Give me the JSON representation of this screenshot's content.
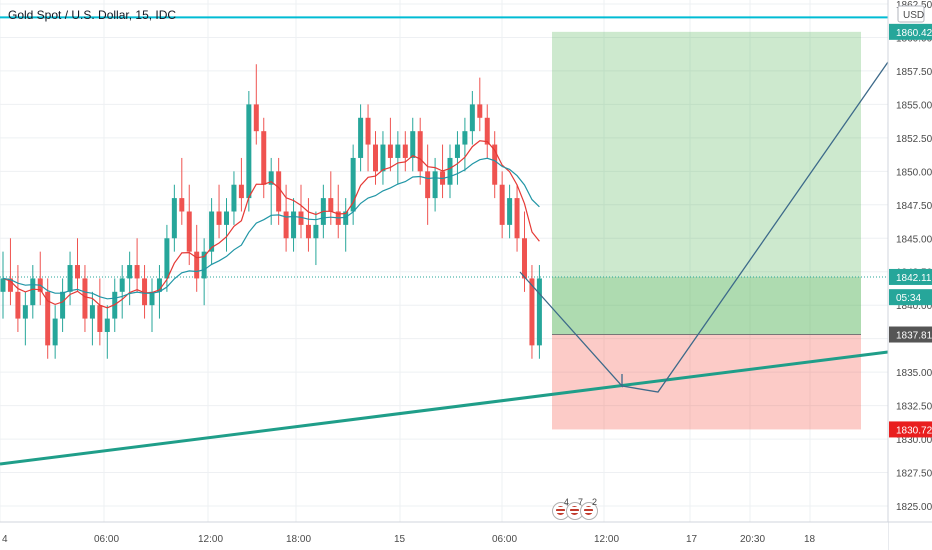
{
  "header": {
    "title": "Gold Spot / U.S. Dollar, 15, IDC"
  },
  "price_axis": {
    "currency": "USD",
    "labels": [
      "1862.50",
      "1860.00",
      "1857.50",
      "1855.00",
      "1852.50",
      "1850.00",
      "1847.50",
      "1845.00",
      "1842.50",
      "1840.00",
      "1837.50",
      "1835.00",
      "1832.50",
      "1830.00",
      "1827.50",
      "1825.00"
    ],
    "values": [
      1862.5,
      1860,
      1857.5,
      1855,
      1852.5,
      1850,
      1847.5,
      1845,
      1842.5,
      1840,
      1837.5,
      1835,
      1832.5,
      1830,
      1827.5,
      1825
    ]
  },
  "badges": [
    {
      "text": "1860.42",
      "value": 1860.42,
      "color": "#26a69a"
    },
    {
      "text": "1842.11",
      "value": 1842.11,
      "color": "#26a69a"
    },
    {
      "text": "05:34",
      "value": 1840.6,
      "color": "#26a69a"
    },
    {
      "text": "1837.81",
      "value": 1837.81,
      "color": "#555555"
    },
    {
      "text": "1830.72",
      "value": 1830.72,
      "color": "#e91e1e"
    }
  ],
  "time_axis": {
    "labels": [
      "4",
      "06:00",
      "12:00",
      "18:00",
      "15",
      "06:00",
      "12:00",
      "17",
      "20:30",
      "18"
    ]
  },
  "levels": {
    "cyan_line": 1861.5,
    "target": 1860.42,
    "entry": 1837.81,
    "stop": 1830.72,
    "last": 1842.11
  },
  "events": [
    {
      "count": "4"
    },
    {
      "count": "7"
    },
    {
      "count": "2"
    }
  ],
  "colors": {
    "up": "#26a69a",
    "down": "#ef5350",
    "ema_fast": "#e53935",
    "ema_slow": "#2196a6",
    "trendline": "#1f9e89",
    "projection": "#3d6a8a",
    "target_zone": "rgba(76,175,80,0.25)",
    "stop_zone": "rgba(244,67,54,0.25)"
  },
  "chart_data": {
    "type": "candlestick",
    "symbol": "Gold Spot / U.S. Dollar",
    "interval": "15",
    "ylim": [
      1823.5,
      1863
    ],
    "candles": [
      [
        1841,
        1844,
        1839,
        1842
      ],
      [
        1842,
        1845,
        1840,
        1841
      ],
      [
        1841,
        1843,
        1838,
        1839
      ],
      [
        1839,
        1841,
        1837,
        1840
      ],
      [
        1840,
        1843,
        1839,
        1842
      ],
      [
        1842,
        1844,
        1840,
        1841
      ],
      [
        1841,
        1842,
        1836,
        1837
      ],
      [
        1837,
        1840,
        1836,
        1839
      ],
      [
        1839,
        1842,
        1838,
        1841
      ],
      [
        1841,
        1844,
        1840,
        1843
      ],
      [
        1843,
        1845,
        1841,
        1842
      ],
      [
        1842,
        1843,
        1838,
        1839
      ],
      [
        1839,
        1841,
        1837,
        1840
      ],
      [
        1840,
        1842,
        1837,
        1838
      ],
      [
        1838,
        1840,
        1836,
        1839
      ],
      [
        1839,
        1842,
        1838,
        1841
      ],
      [
        1841,
        1843,
        1839,
        1842
      ],
      [
        1842,
        1844,
        1840,
        1843
      ],
      [
        1843,
        1845,
        1841,
        1842
      ],
      [
        1842,
        1843,
        1839,
        1840
      ],
      [
        1840,
        1842,
        1838,
        1841
      ],
      [
        1841,
        1843,
        1839,
        1842
      ],
      [
        1842,
        1846,
        1841,
        1845
      ],
      [
        1845,
        1849,
        1844,
        1848
      ],
      [
        1848,
        1851,
        1846,
        1847
      ],
      [
        1847,
        1849,
        1843,
        1844
      ],
      [
        1844,
        1846,
        1841,
        1842
      ],
      [
        1842,
        1845,
        1840,
        1844
      ],
      [
        1844,
        1848,
        1843,
        1847
      ],
      [
        1847,
        1849,
        1845,
        1846
      ],
      [
        1846,
        1848,
        1844,
        1847
      ],
      [
        1847,
        1850,
        1846,
        1849
      ],
      [
        1849,
        1851,
        1847,
        1848
      ],
      [
        1848,
        1856,
        1847,
        1855
      ],
      [
        1855,
        1858,
        1852,
        1853
      ],
      [
        1853,
        1854,
        1848,
        1849
      ],
      [
        1849,
        1851,
        1846,
        1850
      ],
      [
        1850,
        1851,
        1846,
        1847
      ],
      [
        1847,
        1849,
        1844,
        1845
      ],
      [
        1845,
        1848,
        1844,
        1847
      ],
      [
        1847,
        1849,
        1845,
        1846
      ],
      [
        1846,
        1848,
        1844,
        1845
      ],
      [
        1845,
        1847,
        1843,
        1846
      ],
      [
        1846,
        1849,
        1845,
        1848
      ],
      [
        1848,
        1850,
        1846,
        1847
      ],
      [
        1847,
        1849,
        1845,
        1846
      ],
      [
        1846,
        1848,
        1844,
        1847
      ],
      [
        1847,
        1852,
        1846,
        1851
      ],
      [
        1851,
        1855,
        1850,
        1854
      ],
      [
        1854,
        1855,
        1850,
        1852
      ],
      [
        1852,
        1853,
        1849,
        1850
      ],
      [
        1850,
        1853,
        1849,
        1852
      ],
      [
        1852,
        1854,
        1850,
        1851
      ],
      [
        1851,
        1853,
        1849,
        1852
      ],
      [
        1852,
        1853,
        1850,
        1851
      ],
      [
        1851,
        1854,
        1850,
        1853
      ],
      [
        1853,
        1854,
        1849,
        1850
      ],
      [
        1850,
        1852,
        1846,
        1848
      ],
      [
        1848,
        1851,
        1847,
        1850
      ],
      [
        1850,
        1852,
        1848,
        1849
      ],
      [
        1849,
        1852,
        1848,
        1851
      ],
      [
        1851,
        1853,
        1849,
        1852
      ],
      [
        1852,
        1854,
        1850,
        1853
      ],
      [
        1853,
        1856,
        1852,
        1855
      ],
      [
        1855,
        1857,
        1853,
        1854
      ],
      [
        1854,
        1855,
        1851,
        1852
      ],
      [
        1852,
        1853,
        1848,
        1849
      ],
      [
        1849,
        1850,
        1845,
        1846
      ],
      [
        1846,
        1849,
        1845,
        1848
      ],
      [
        1848,
        1849,
        1844,
        1845
      ],
      [
        1845,
        1847,
        1841,
        1842
      ],
      [
        1842,
        1843,
        1836,
        1837
      ],
      [
        1837,
        1843,
        1836,
        1842
      ]
    ]
  }
}
